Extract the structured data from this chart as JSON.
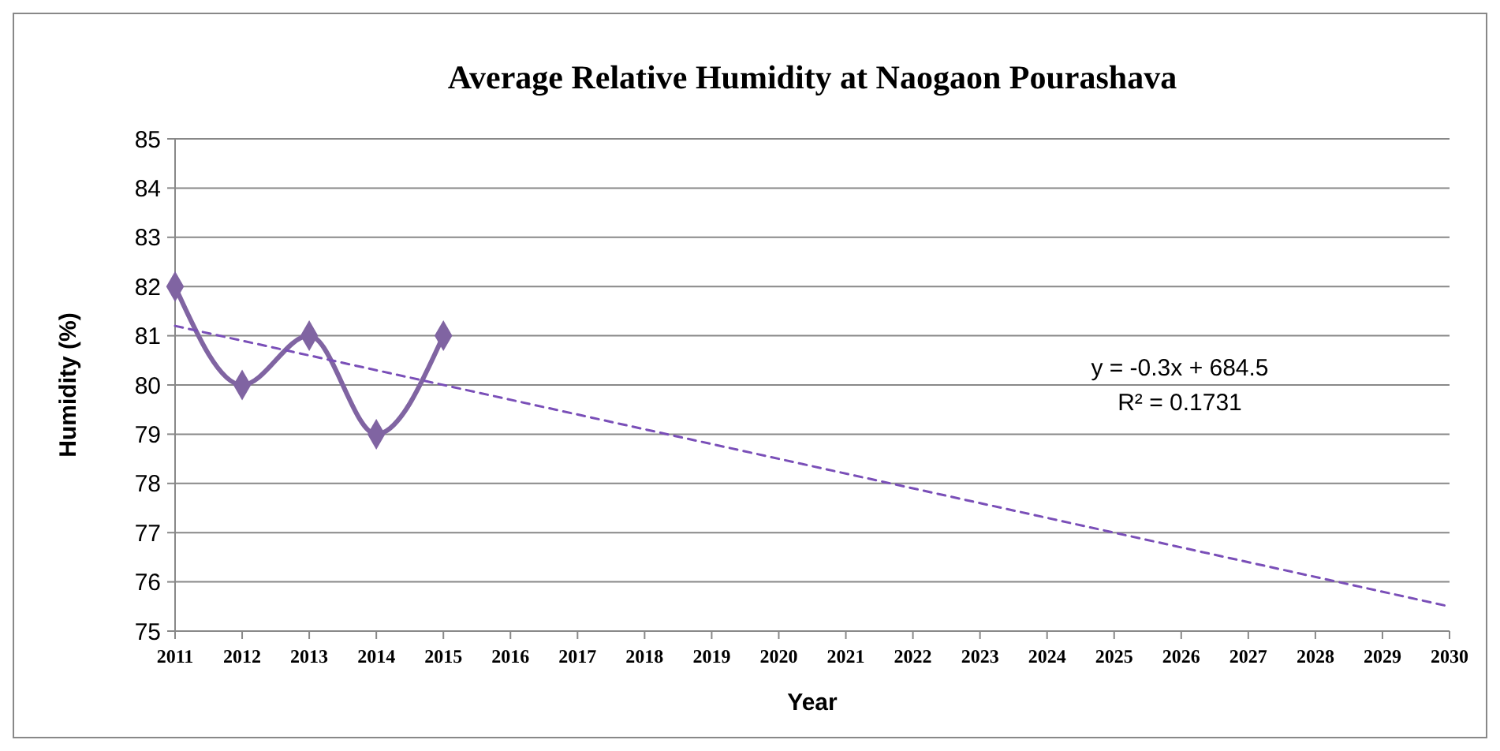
{
  "chart_data": {
    "type": "line",
    "title": "Average Relative Humidity at Naogaon Pourashava",
    "xlabel": "Year",
    "ylabel": "Humidity (%)",
    "x": [
      2011,
      2012,
      2013,
      2014,
      2015
    ],
    "series": [
      {
        "color": "#8064a2",
        "values": [
          82,
          80,
          81,
          79,
          81
        ],
        "marker": "diamond",
        "line_style": "solid"
      },
      {
        "color": "#7a4fb8",
        "x": [
          2011,
          2030
        ],
        "values": [
          81.2,
          75.5
        ],
        "marker": "none",
        "line_style": "dashed"
      }
    ],
    "xlim": [
      2011,
      2030
    ],
    "xticks": [
      2011,
      2012,
      2013,
      2014,
      2015,
      2016,
      2017,
      2018,
      2019,
      2020,
      2021,
      2022,
      2023,
      2024,
      2025,
      2026,
      2027,
      2028,
      2029,
      2030
    ],
    "ylim": [
      75,
      85
    ],
    "yticks": [
      75,
      76,
      77,
      78,
      79,
      80,
      81,
      82,
      83,
      84,
      85
    ],
    "grid": "y",
    "annotations": [
      "y = -0.3x + 684.5",
      "R² = 0.1731"
    ]
  }
}
